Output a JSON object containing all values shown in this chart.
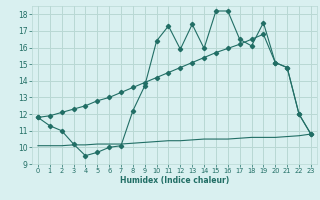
{
  "xlabel": "Humidex (Indice chaleur)",
  "bg_color": "#d9f0f0",
  "line_color": "#216e65",
  "grid_color": "#b8d8d4",
  "xlim": [
    -0.5,
    23.5
  ],
  "ylim": [
    9,
    18.5
  ],
  "yticks": [
    9,
    10,
    11,
    12,
    13,
    14,
    15,
    16,
    17,
    18
  ],
  "xticks": [
    0,
    1,
    2,
    3,
    4,
    5,
    6,
    7,
    8,
    9,
    10,
    11,
    12,
    13,
    14,
    15,
    16,
    17,
    18,
    19,
    20,
    21,
    22,
    23
  ],
  "line1_x": [
    0,
    1,
    2,
    3,
    4,
    5,
    6,
    7,
    8,
    9,
    10,
    11,
    12,
    13,
    14,
    15,
    16,
    17,
    18,
    19,
    20,
    21,
    22,
    23
  ],
  "line1_y": [
    11.8,
    11.3,
    11.0,
    10.2,
    9.5,
    9.7,
    10.0,
    10.1,
    12.2,
    13.7,
    16.4,
    17.3,
    15.9,
    17.4,
    15.95,
    18.2,
    18.2,
    16.5,
    16.1,
    17.5,
    15.1,
    14.8,
    12.0,
    10.8
  ],
  "line2_x": [
    0,
    1,
    2,
    3,
    4,
    5,
    6,
    7,
    8,
    9,
    10,
    11,
    12,
    13,
    14,
    15,
    16,
    17,
    18,
    19,
    20,
    21,
    22,
    23
  ],
  "line2_y": [
    11.8,
    11.9,
    12.1,
    12.3,
    12.5,
    12.8,
    13.0,
    13.3,
    13.6,
    13.9,
    14.2,
    14.5,
    14.8,
    15.1,
    15.4,
    15.7,
    15.95,
    16.2,
    16.5,
    16.8,
    15.1,
    14.8,
    12.0,
    10.8
  ],
  "line3_x": [
    0,
    1,
    2,
    3,
    4,
    5,
    6,
    7,
    8,
    9,
    10,
    11,
    12,
    13,
    14,
    15,
    16,
    17,
    18,
    19,
    20,
    21,
    22,
    23
  ],
  "line3_y": [
    10.1,
    10.1,
    10.1,
    10.15,
    10.15,
    10.2,
    10.2,
    10.2,
    10.25,
    10.3,
    10.35,
    10.4,
    10.4,
    10.45,
    10.5,
    10.5,
    10.5,
    10.55,
    10.6,
    10.6,
    10.6,
    10.65,
    10.7,
    10.8
  ]
}
